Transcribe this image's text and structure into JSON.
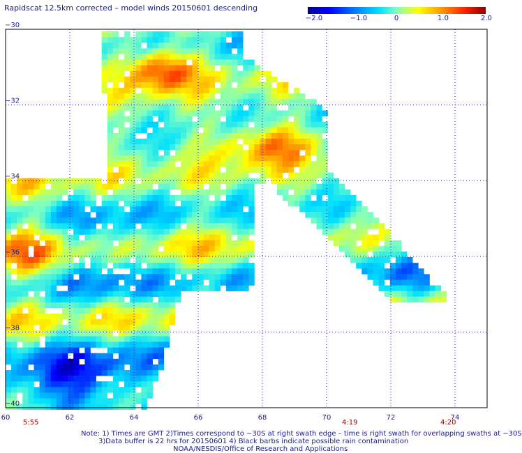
{
  "title": "Rapidscat 12.5km corrected – model winds 20150601 descending",
  "colorbar": {
    "ticks": [
      "−2.0",
      "−1.0",
      "0",
      "1.0",
      "2.0"
    ],
    "tick_values": [
      -2.0,
      -1.0,
      0.0,
      1.0,
      2.0
    ],
    "range": [
      -2.0,
      2.0
    ],
    "colors": [
      "#00008c",
      "#0000ff",
      "#0080ff",
      "#00e0ff",
      "#80ffc0",
      "#ffff00",
      "#ff9900",
      "#ff2000",
      "#8c0000"
    ]
  },
  "map": {
    "lon_range": [
      60,
      75
    ],
    "lat_range": [
      -40,
      -30
    ],
    "lon_ticks": [
      "60",
      "62",
      "64",
      "66",
      "68",
      "70",
      "72",
      "74"
    ],
    "lat_ticks": [
      "−30",
      "−32",
      "−34",
      "−36",
      "−38",
      "−40"
    ],
    "gridlines": "dotted"
  },
  "times": [
    {
      "label": "5:55",
      "lon": 60.6
    },
    {
      "label": "4:19",
      "lon": 69.9
    },
    {
      "label": "4:20",
      "lon": 72.7
    }
  ],
  "notes": {
    "line1": "Note: 1) Times are GMT 2)Times correspond to −30S at right swath edge – time is right swath for overlapping swaths at −30S",
    "line2": "3)Data buffer is 22 hrs for 20150601 4) Black barbs indicate possible rain contamination",
    "line3": "NOAA/NESDIS/Office of Research and Applications"
  }
}
